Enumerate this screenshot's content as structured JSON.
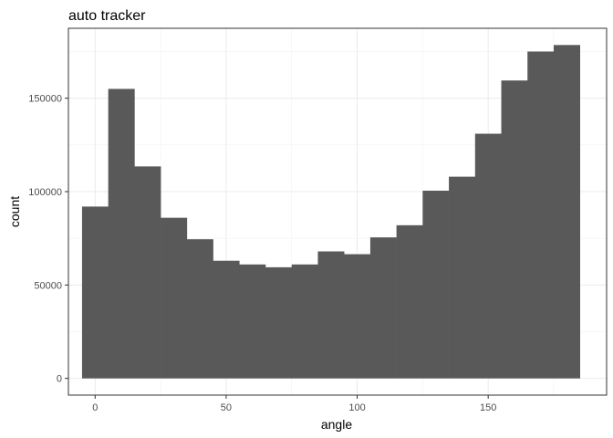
{
  "chart_data": {
    "type": "bar",
    "title": "auto tracker",
    "xlabel": "angle",
    "ylabel": "count",
    "bin_width": 10,
    "bins": [
      {
        "center": 0,
        "count": 92000
      },
      {
        "center": 10,
        "count": 155000
      },
      {
        "center": 20,
        "count": 113500
      },
      {
        "center": 30,
        "count": 86000
      },
      {
        "center": 40,
        "count": 74500
      },
      {
        "center": 50,
        "count": 63000
      },
      {
        "center": 60,
        "count": 61000
      },
      {
        "center": 70,
        "count": 59500
      },
      {
        "center": 80,
        "count": 61000
      },
      {
        "center": 90,
        "count": 68000
      },
      {
        "center": 100,
        "count": 66500
      },
      {
        "center": 110,
        "count": 75500
      },
      {
        "center": 120,
        "count": 82000
      },
      {
        "center": 130,
        "count": 100500
      },
      {
        "center": 140,
        "count": 108000
      },
      {
        "center": 150,
        "count": 131000
      },
      {
        "center": 160,
        "count": 159500
      },
      {
        "center": 170,
        "count": 175000
      },
      {
        "center": 180,
        "count": 178500
      }
    ],
    "xlim": [
      -10.2,
      195.2
    ],
    "ylim": [
      -8950,
      187450
    ],
    "x_ticks": [
      0,
      50,
      100,
      150
    ],
    "y_ticks": [
      0,
      50000,
      100000,
      150000
    ],
    "grid": true,
    "bar_color": "#595959"
  }
}
